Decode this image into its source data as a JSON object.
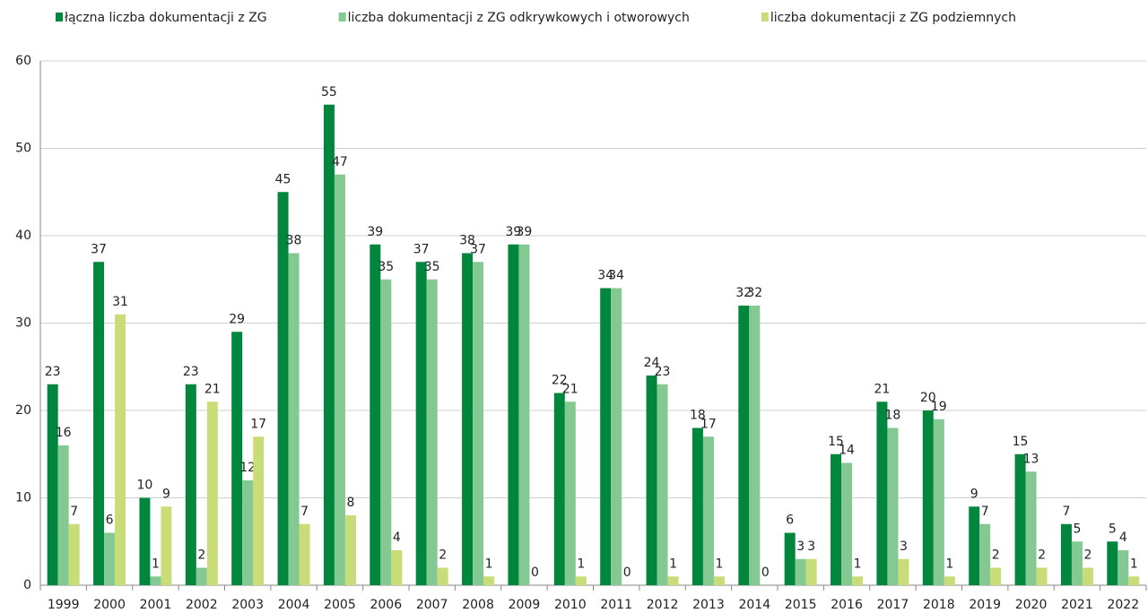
{
  "chart_data": {
    "type": "bar",
    "categories": [
      "1999",
      "2000",
      "2001",
      "2002",
      "2003",
      "2004",
      "2005",
      "2006",
      "2007",
      "2008",
      "2009",
      "2010",
      "2011",
      "2012",
      "2013",
      "2014",
      "2015",
      "2016",
      "2017",
      "2018",
      "2019",
      "2020",
      "2021",
      "2022"
    ],
    "series": [
      {
        "name": "łączna liczba dokumentacji z ZG",
        "color": "#00873d",
        "values": [
          23,
          37,
          10,
          23,
          29,
          45,
          55,
          39,
          37,
          38,
          39,
          22,
          34,
          24,
          18,
          32,
          6,
          15,
          21,
          20,
          9,
          15,
          7,
          5
        ]
      },
      {
        "name": "liczba dokumentacji z ZG odkrywkowych i otworowych",
        "color": "#84c991",
        "values": [
          16,
          6,
          1,
          2,
          12,
          38,
          47,
          35,
          35,
          37,
          39,
          21,
          34,
          23,
          17,
          32,
          3,
          14,
          18,
          19,
          7,
          13,
          5,
          4
        ]
      },
      {
        "name": "liczba dokumentacji z ZG podziemnych",
        "color": "#c8dd77",
        "values": [
          7,
          31,
          9,
          21,
          17,
          7,
          8,
          4,
          2,
          1,
          0,
          1,
          0,
          1,
          1,
          0,
          3,
          1,
          3,
          1,
          2,
          2,
          2,
          1
        ]
      }
    ],
    "ylim": [
      0,
      60
    ],
    "yticks": [
      0,
      10,
      20,
      30,
      40,
      50,
      60
    ],
    "grid": true,
    "legend": "top"
  }
}
